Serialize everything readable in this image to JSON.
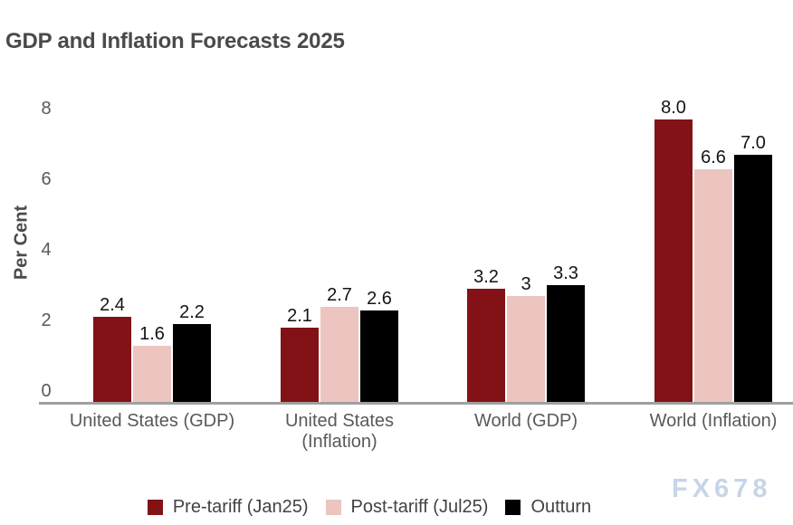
{
  "title": "GDP and Inflation Forecasts 2025",
  "y_axis": {
    "label": "Per Cent",
    "tick_labels": [
      "0",
      "2",
      "4",
      "6",
      "8"
    ]
  },
  "watermark": "FX678",
  "colors": {
    "pre_tariff": "#821215",
    "post_tariff": "#ecc5c0",
    "outturn": "#000000",
    "axis_line": "#a0a0a0",
    "title_text": "#4a4a4a",
    "watermark_text": "#c7d5e7"
  },
  "legend": [
    {
      "label": "Pre-tariff (Jan25)",
      "color": "#821215"
    },
    {
      "label": "Post-tariff (Jul25)",
      "color": "#ecc5c0"
    },
    {
      "label": "Outturn",
      "color": "#000000"
    }
  ],
  "chart_data": {
    "type": "bar",
    "title": "GDP and Inflation Forecasts 2025",
    "xlabel": "",
    "ylabel": "Per Cent",
    "ylim": [
      0,
      8.6
    ],
    "yticks": [
      0,
      2,
      4,
      6,
      8
    ],
    "grid": false,
    "legend_position": "bottom",
    "categories": [
      "United States (GDP)",
      "United States (Inflation)",
      "World (GDP)",
      "World (Inflation)"
    ],
    "category_display_lines": [
      [
        "United States (GDP)"
      ],
      [
        "United States",
        "(Inflation)"
      ],
      [
        "World (GDP)"
      ],
      [
        "World (Inflation)"
      ]
    ],
    "series": [
      {
        "name": "Pre-tariff (Jan25)",
        "color": "#821215",
        "values": [
          2.4,
          2.1,
          3.2,
          8.0
        ],
        "value_labels": [
          "2.4",
          "2.1",
          "3.2",
          "8.0"
        ]
      },
      {
        "name": "Post-tariff (Jul25)",
        "color": "#ecc5c0",
        "values": [
          1.6,
          2.7,
          3.0,
          6.6
        ],
        "value_labels": [
          "1.6",
          "2.7",
          "3",
          "6.6"
        ]
      },
      {
        "name": "Outturn",
        "color": "#000000",
        "values": [
          2.2,
          2.6,
          3.3,
          7.0
        ],
        "value_labels": [
          "2.2",
          "2.6",
          "3.3",
          "7.0"
        ]
      }
    ]
  }
}
